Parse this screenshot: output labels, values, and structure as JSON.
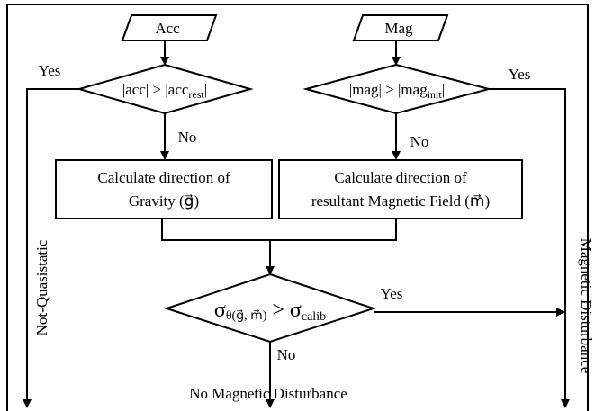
{
  "nodes": {
    "acc": "Acc",
    "mag": "Mag",
    "decision_acc": {
      "main": "|acc| > |acc",
      "sub": "rest",
      "end": "|"
    },
    "decision_mag": {
      "main": "|mag| > |mag",
      "sub": "init",
      "end": "|"
    },
    "calc_gravity": [
      "Calculate direction of",
      "Gravity (g⃗)"
    ],
    "calc_field": [
      "Calculate direction of",
      "resultant Magnetic Field (m⃗)"
    ],
    "decision_sigma": {
      "symbol": "σ",
      "sub": "θ(g⃗, m⃗)",
      "main": " > σ",
      "sub2": "calib"
    }
  },
  "labels": {
    "yes_acc": "Yes",
    "no_acc": "No",
    "yes_mag": "Yes",
    "no_mag": "No",
    "yes_sigma": "Yes",
    "no_sigma": "No",
    "not_quasistatic": "Not-Quasistatic",
    "magnetic_disturbance": "Magnetic Disturbance",
    "no_magnetic_disturbance": "No Magnetic  Disturbance"
  }
}
